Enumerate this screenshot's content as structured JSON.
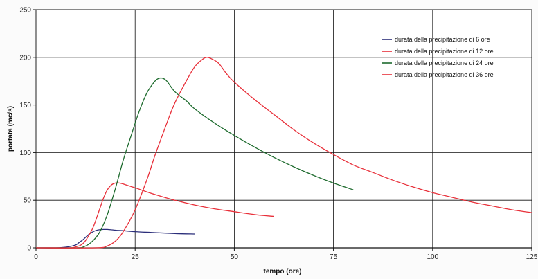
{
  "chart_data": {
    "type": "line",
    "xlabel": "tempo (ore)",
    "ylabel": "portata (mc/s)",
    "xlim": [
      0,
      125
    ],
    "ylim": [
      0,
      250
    ],
    "xticks": [
      0,
      25,
      50,
      75,
      100,
      125
    ],
    "yticks": [
      0,
      50,
      100,
      150,
      200,
      250
    ],
    "grid": true,
    "legend_position": "top-right",
    "series": [
      {
        "name": "durata della precipitazione di 6 ore",
        "color": "#2b2e7a",
        "x": [
          0,
          5,
          8,
          10,
          11,
          12,
          13,
          14,
          15,
          16,
          17,
          18,
          19,
          20,
          22,
          25,
          30,
          35,
          40
        ],
        "y": [
          0,
          0,
          1,
          3,
          6,
          9,
          13,
          16,
          18,
          19,
          19.3,
          19.3,
          19,
          18.5,
          18,
          17,
          16,
          15,
          14.5
        ]
      },
      {
        "name": "durata della precipitazione di 12 ore",
        "color": "#e8303a",
        "x": [
          0,
          8,
          10,
          12,
          14,
          15,
          16,
          17,
          18,
          19,
          20,
          21,
          22,
          25,
          30,
          35,
          40,
          45,
          50,
          55,
          60
        ],
        "y": [
          0,
          0,
          1,
          5,
          18,
          28,
          40,
          52,
          61,
          66,
          68,
          68,
          67,
          63,
          56,
          50,
          45,
          41,
          38,
          35,
          33
        ]
      },
      {
        "name": "durata della precipitazione di 24 ore",
        "color": "#1e6b2e",
        "x": [
          0,
          10,
          12,
          14,
          16,
          18,
          20,
          22,
          24,
          26,
          28,
          30,
          31,
          32,
          33,
          35,
          38,
          40,
          45,
          50,
          55,
          60,
          65,
          70,
          75,
          80
        ],
        "y": [
          0,
          0,
          1,
          6,
          16,
          35,
          62,
          92,
          118,
          143,
          163,
          175,
          178,
          178,
          175,
          164,
          154,
          146,
          131,
          118,
          106,
          95,
          85,
          76,
          68,
          61
        ]
      },
      {
        "name": "durata della precipitazione di 36 ore",
        "color": "#e8303a",
        "x": [
          0,
          15,
          18,
          20,
          22,
          25,
          28,
          30,
          33,
          35,
          38,
          40,
          42,
          43,
          44,
          46,
          48,
          50,
          55,
          60,
          65,
          70,
          75,
          80,
          85,
          90,
          95,
          100,
          105,
          110,
          115,
          120,
          125
        ],
        "y": [
          0,
          0,
          2,
          7,
          17,
          40,
          72,
          97,
          131,
          152,
          176,
          190,
          198,
          200,
          199,
          194,
          183,
          174,
          156,
          140,
          124,
          110,
          98,
          87,
          79,
          71,
          64,
          58,
          53,
          48,
          44,
          40,
          37
        ]
      }
    ]
  }
}
